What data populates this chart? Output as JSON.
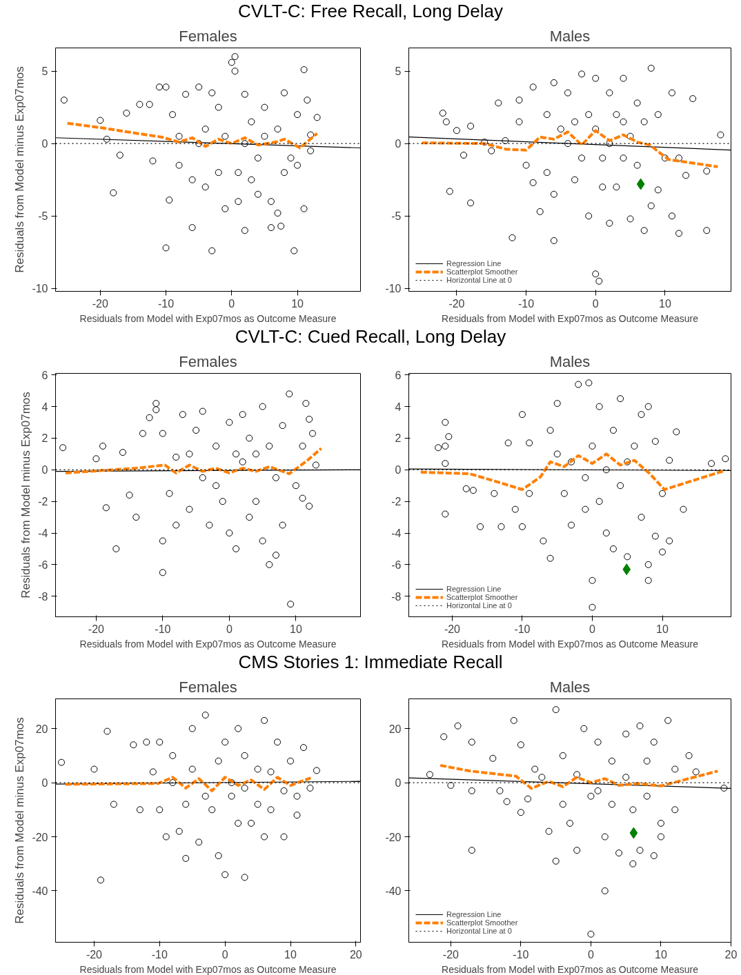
{
  "chart_data": [
    {
      "type": "scatter",
      "title": "CVLT-C: Free Recall, Long Delay",
      "subtitle": "Females",
      "xlabel": "Residuals from Model with Exp07mos as Outcome Measure",
      "ylabel": "Residuals from Model minus Exp07mos",
      "xlim": [
        -26.8,
        19.6
      ],
      "ylim": [
        -10.2,
        6.6
      ],
      "xticks": [
        -20,
        -10,
        0,
        10
      ],
      "yticks": [
        -10,
        -5,
        0,
        5
      ],
      "ref_lines": [
        {
          "axis": "y",
          "value": 0,
          "color": "#000000",
          "line_style": "dotted"
        }
      ],
      "series": [
        {
          "type": "scatter",
          "marker": "circle",
          "color": "#000000",
          "x": [
            -25.5,
            -20,
            -19,
            -18,
            -17,
            -16,
            -14,
            -12.5,
            -12,
            -11,
            -10,
            -10,
            -9.5,
            -8,
            -7,
            -6,
            -5,
            -4,
            -3,
            -3,
            -2,
            -1,
            0,
            0.5,
            0.5,
            1,
            1,
            2,
            2,
            3,
            4,
            4,
            5,
            6,
            6,
            7,
            7.5,
            8,
            9,
            9.5,
            10,
            11,
            11,
            11.5,
            12,
            13,
            -8,
            -6,
            -4,
            -2,
            -1,
            3,
            5,
            7,
            8,
            2,
            -5,
            10,
            12,
            -9
          ],
          "values": [
            3,
            1.6,
            0.3,
            -3.4,
            -0.8,
            2.1,
            2.7,
            2.7,
            -1.2,
            3.9,
            -7.2,
            3.9,
            -3.9,
            -1.5,
            3.4,
            -5.8,
            3.9,
            1,
            -7.4,
            3.5,
            -2,
            -4.5,
            5.6,
            6,
            5,
            -2,
            -4,
            -6,
            3.4,
            1.5,
            -1,
            -3.5,
            2.5,
            -4,
            -5.8,
            -4.8,
            -5.7,
            3.5,
            -1,
            -7.4,
            2,
            -4.5,
            5.1,
            3,
            -0.5,
            1.8,
            0.5,
            -2.5,
            -3,
            2.5,
            0.5,
            -2.5,
            0.5,
            1,
            -2,
            0,
            0,
            -1.5,
            0.6,
            2
          ]
        },
        {
          "type": "line",
          "color": "#000000",
          "line_style": "solid",
          "x": [
            -26.8,
            19.6
          ],
          "values": [
            0.4,
            -0.3
          ]
        },
        {
          "type": "line",
          "color": "#ff7f00",
          "line_style": "dashed",
          "x": [
            -25,
            -20,
            -14.4,
            -10.7,
            -8,
            -6,
            -4,
            -2,
            0,
            2,
            4,
            6.7,
            8,
            10.4,
            13
          ],
          "values": [
            1.4,
            1.1,
            0.7,
            0.45,
            0.1,
            0.4,
            -0.2,
            0.3,
            0,
            0.4,
            -0.1,
            0.1,
            0.3,
            -0.3,
            0.7
          ]
        }
      ]
    },
    {
      "type": "scatter",
      "subtitle": "Males",
      "xlabel": "Residuals from Model with Exp07mos as Outcome Measure",
      "xlim": [
        -26.9,
        19.5
      ],
      "ylim": [
        -10.2,
        6.6
      ],
      "xticks": [
        -20,
        -10,
        0,
        10
      ],
      "yticks": [
        -10,
        -5,
        0,
        5
      ],
      "legend": "bottom left",
      "ref_lines": [
        {
          "axis": "y",
          "value": 0,
          "label": "Horizontal Line at 0",
          "color": "#000000",
          "line_style": "dotted"
        }
      ],
      "series": [
        {
          "type": "scatter",
          "marker": "circle",
          "color": "#000000",
          "x": [
            -22,
            -21.5,
            -21,
            -20,
            -19,
            -18,
            -18,
            -16,
            -15,
            -14,
            -13,
            -12,
            -11,
            -11,
            -10,
            -9,
            -9,
            -8,
            -7,
            -6,
            -6,
            -6,
            -5,
            -4,
            -3,
            -2,
            -1,
            -1,
            0,
            0,
            0.5,
            1,
            2,
            2,
            3,
            4,
            4,
            5,
            6,
            6,
            7,
            7,
            8,
            8,
            9,
            9,
            10,
            11,
            11,
            12,
            12,
            13,
            14,
            16,
            16,
            18,
            -4,
            -2,
            0,
            2,
            4,
            -3,
            1,
            5,
            -7,
            3
          ],
          "values": [
            2.1,
            1.5,
            -3.3,
            0.9,
            -0.8,
            1.2,
            -4.1,
            0.1,
            -0.5,
            2.8,
            0.2,
            -6.5,
            3,
            1.5,
            -1.5,
            -2.7,
            3.9,
            -4.7,
            -2,
            4.2,
            -3.5,
            -6.7,
            1,
            3.5,
            -2.5,
            4.8,
            -5,
            2,
            -9,
            4.5,
            -9.5,
            -1,
            3.5,
            -5.5,
            -3,
            1.5,
            4.5,
            -5.2,
            -1.5,
            2.8,
            -6,
            1.5,
            5.2,
            -4.3,
            -3.2,
            2,
            -1,
            3.5,
            -5,
            -1,
            -6.2,
            -2.2,
            3.1,
            -1.9,
            -6,
            0.6,
            0,
            -1,
            1,
            0,
            -1,
            1.5,
            -3,
            0.5,
            2,
            2
          ]
        },
        {
          "type": "line",
          "name": "Regression Line",
          "color": "#000000",
          "line_style": "solid",
          "x": [
            -26.9,
            19.5
          ],
          "values": [
            0.45,
            -0.45
          ]
        },
        {
          "type": "line",
          "name": "Scatterplot Smoother",
          "color": "#ff7f00",
          "line_style": "dashed",
          "x": [
            -25,
            -16,
            -12.8,
            -10,
            -8,
            -6,
            -4,
            -2,
            0,
            2,
            4,
            6,
            7.8,
            10.5,
            17.6
          ],
          "values": [
            0.05,
            0,
            -0.4,
            -0.45,
            0.45,
            0.3,
            0.8,
            -0.1,
            0.9,
            0.2,
            0.6,
            0.1,
            -0.1,
            -1.1,
            -1.6
          ]
        },
        {
          "type": "scatter",
          "marker": "diamond",
          "color": "#008000",
          "x": [
            6.5
          ],
          "values": [
            -2.8
          ]
        }
      ]
    },
    {
      "type": "scatter",
      "title": "CVLT-C: Cued Recall, Long Delay",
      "subtitle": "Females",
      "xlabel": "Residuals from Model with Exp07mos as Outcome Measure",
      "ylabel": "Residuals from Model minus Exp07mos",
      "xlim": [
        -26.1,
        19.7
      ],
      "ylim": [
        -9.3,
        6.1
      ],
      "xticks": [
        -20,
        -10,
        0,
        10
      ],
      "yticks": [
        -8,
        -6,
        -4,
        -2,
        0,
        2,
        4,
        6
      ],
      "ref_lines": [
        {
          "axis": "y",
          "value": 0,
          "color": "#000000",
          "line_style": "dotted"
        }
      ],
      "series": [
        {
          "type": "scatter",
          "marker": "circle",
          "color": "#000000",
          "x": [
            -25,
            -20,
            -19,
            -18.5,
            -17,
            -16,
            -15,
            -14,
            -13,
            -12,
            -11,
            -11,
            -10,
            -10,
            -10,
            -9,
            -8,
            -7,
            -6,
            -5,
            -4,
            -3,
            -2,
            -1,
            0,
            0,
            1,
            1,
            2,
            3,
            4,
            5,
            5,
            6,
            6,
            7,
            8,
            8,
            9,
            9.2,
            10,
            11,
            11,
            11.5,
            12,
            12,
            12.5,
            13,
            -8,
            -4,
            -2,
            2,
            4,
            7,
            -6,
            3
          ],
          "values": [
            1.4,
            0.7,
            1.5,
            -2.4,
            -5,
            1.1,
            -1.6,
            -3,
            2.3,
            3.3,
            3.8,
            4.2,
            -6.5,
            -4.5,
            2.3,
            -1.5,
            -3.5,
            3.5,
            -2.5,
            2.5,
            3.7,
            -3.5,
            1.5,
            -2,
            3,
            -4,
            -5,
            1,
            3.5,
            -3,
            -2,
            4,
            -4.5,
            1.5,
            -6,
            -5.4,
            2.8,
            -3.5,
            4.8,
            -8.5,
            -1,
            1.5,
            -1.8,
            4.2,
            3.2,
            -2.3,
            2.3,
            0.3,
            0.8,
            -0.5,
            -1,
            0.5,
            1,
            -0.5,
            1,
            2
          ]
        },
        {
          "type": "line",
          "color": "#000000",
          "line_style": "solid",
          "x": [
            -26.1,
            19.7
          ],
          "values": [
            -0.1,
            0
          ]
        },
        {
          "type": "line",
          "color": "#ff7f00",
          "line_style": "dashed",
          "x": [
            -24.6,
            -14,
            -9.7,
            -8,
            -6,
            -4,
            -2,
            0,
            2,
            4,
            6,
            9,
            11.6,
            13.8
          ],
          "values": [
            -0.2,
            0.1,
            0.3,
            -0.2,
            0.3,
            -0.1,
            0.1,
            -0.2,
            0.1,
            -0.1,
            0.2,
            -0.25,
            0.55,
            1.35
          ]
        }
      ]
    },
    {
      "type": "scatter",
      "subtitle": "Males",
      "xlabel": "Residuals from Model with Exp07mos as Outcome Measure",
      "xlim": [
        -26.2,
        19.8
      ],
      "ylim": [
        -9.3,
        6.1
      ],
      "xticks": [
        -20,
        -10,
        0,
        10
      ],
      "yticks": [
        -8,
        -6,
        -4,
        -2,
        0,
        2,
        4,
        6
      ],
      "legend": "bottom left",
      "ref_lines": [
        {
          "axis": "y",
          "value": 0,
          "label": "Horizontal Line at 0",
          "color": "#000000",
          "line_style": "dotted"
        }
      ],
      "series": [
        {
          "type": "scatter",
          "marker": "circle",
          "color": "#000000",
          "x": [
            -21,
            -20.5,
            -21,
            -21,
            -21,
            -22,
            -18,
            -17,
            -16,
            -14,
            -13,
            -12,
            -10,
            -10,
            -9,
            -9,
            -7,
            -6,
            -6,
            -5,
            -4,
            -3,
            -2,
            -1,
            -0.5,
            0,
            0,
            1,
            1,
            2,
            3,
            3,
            4,
            5,
            6,
            7,
            7,
            8,
            8,
            8,
            9,
            9,
            10,
            11,
            12,
            13,
            17,
            19,
            -3,
            -1,
            2,
            4,
            -5,
            0,
            5,
            10,
            11,
            -11
          ],
          "values": [
            3,
            2.1,
            -2.8,
            0.4,
            1.5,
            1.4,
            -1.2,
            -1.3,
            -3.6,
            -1.5,
            -3.6,
            1.7,
            3.5,
            -3.6,
            -1.5,
            1.7,
            -4.5,
            -5.6,
            2.5,
            4.2,
            -1.5,
            -3.5,
            5.4,
            -2.5,
            5.5,
            -7,
            -8.7,
            4,
            -2,
            -4,
            -5,
            2.5,
            4.5,
            -5.5,
            1.5,
            -3,
            3.5,
            -7,
            -6,
            4,
            -4.2,
            1.8,
            -5.2,
            0.6,
            2.4,
            -2.5,
            0.4,
            0.7,
            0.5,
            -0.5,
            0,
            -1,
            1,
            1.5,
            0.5,
            -1.5,
            -4.5,
            -2.5
          ]
        },
        {
          "type": "line",
          "name": "Regression Line",
          "color": "#000000",
          "line_style": "solid",
          "x": [
            -26.2,
            19.8
          ],
          "values": [
            0.05,
            -0.05
          ]
        },
        {
          "type": "line",
          "name": "Scatterplot Smoother",
          "color": "#ff7f00",
          "line_style": "dashed",
          "x": [
            -24.5,
            -17.5,
            -13.3,
            -10,
            -7.4,
            -6,
            -4,
            -2,
            0,
            2,
            4,
            6,
            8.1,
            10.3,
            18.9
          ],
          "values": [
            -0.15,
            -0.25,
            -0.8,
            -1.25,
            -0.45,
            0.5,
            0.2,
            0.9,
            0.4,
            1,
            0.3,
            0.6,
            -0.2,
            -1.25,
            -0.05
          ]
        },
        {
          "type": "scatter",
          "marker": "diamond",
          "color": "#008000",
          "x": [
            4.9
          ],
          "values": [
            -6.3
          ]
        }
      ]
    },
    {
      "type": "scatter",
      "title": "CMS Stories 1: Immediate Recall",
      "subtitle": "Females",
      "xlabel": "Residuals from Model with Exp07mos as Outcome Measure",
      "ylabel": "Residuals from Model minus Exp07mos",
      "xlim": [
        -25.9,
        20.7
      ],
      "ylim": [
        -59,
        31
      ],
      "xticks": [
        -20,
        -10,
        0,
        10,
        20
      ],
      "yticks": [
        -40,
        -20,
        0,
        20
      ],
      "ref_lines": [
        {
          "axis": "y",
          "value": 0,
          "color": "#000000",
          "line_style": "dotted"
        }
      ],
      "series": [
        {
          "type": "scatter",
          "marker": "circle",
          "color": "#000000",
          "x": [
            -25,
            -20,
            -19,
            -18,
            -17,
            -14,
            -13,
            -12,
            -11,
            -10,
            -10,
            -9,
            -8,
            -7,
            -6,
            -5,
            -4,
            -3,
            -2,
            -1,
            0,
            0,
            1,
            2,
            3,
            3,
            4,
            5,
            6,
            6,
            7,
            8,
            9,
            10,
            11,
            11,
            12,
            13,
            14,
            -8,
            -5,
            -3,
            -1,
            1,
            3,
            5,
            7,
            9,
            -6,
            2
          ],
          "values": [
            7.5,
            5,
            -36,
            19,
            -8,
            14,
            -10,
            15,
            4,
            15,
            -10,
            -20,
            10,
            -18,
            -28,
            20,
            -22,
            25,
            -10,
            -27,
            -34,
            15,
            -5,
            20,
            -35,
            10,
            -15,
            5,
            -20,
            23,
            -10,
            15,
            -20,
            8,
            -12,
            -5,
            13,
            -2,
            4.5,
            0,
            5,
            -5,
            8,
            0,
            -2,
            -8,
            4,
            -3,
            -8,
            -15
          ]
        },
        {
          "type": "line",
          "color": "#000000",
          "line_style": "solid",
          "x": [
            -25.9,
            20.7
          ],
          "values": [
            -0.5,
            0.5
          ]
        },
        {
          "type": "line",
          "color": "#ff7f00",
          "line_style": "dashed",
          "x": [
            -24.4,
            -10.2,
            -8,
            -6,
            -4,
            -2,
            0,
            2,
            4,
            6,
            8,
            10,
            13.1
          ],
          "values": [
            -0.6,
            -0.3,
            2,
            -2,
            1.5,
            -3,
            2,
            -1,
            1,
            -2.5,
            2,
            -1,
            1.8
          ]
        }
      ]
    },
    {
      "type": "scatter",
      "subtitle": "Males",
      "xlabel": "Residuals from Model with Exp07mos as Outcome Measure",
      "xlim": [
        -26,
        20
      ],
      "ylim": [
        -59,
        31
      ],
      "xticks": [
        -20,
        -10,
        0,
        10,
        20
      ],
      "yticks": [
        -40,
        -20,
        0,
        20
      ],
      "legend": "bottom left",
      "ref_lines": [
        {
          "axis": "y",
          "value": 0,
          "label": "Horizontal Line at 0",
          "color": "#000000",
          "line_style": "dotted"
        }
      ],
      "series": [
        {
          "type": "scatter",
          "marker": "circle",
          "color": "#000000",
          "x": [
            -23,
            -21,
            -20,
            -19,
            -17,
            -17,
            -14,
            -13,
            -12,
            -17,
            -11,
            -10,
            -10,
            -9,
            -7,
            -6,
            -5,
            -5,
            -4,
            -3,
            -2,
            -1,
            0,
            1,
            2,
            2,
            3,
            4,
            5,
            6,
            6,
            7,
            7,
            8,
            9,
            9,
            10,
            11,
            12,
            12,
            14,
            15,
            19,
            0,
            -8,
            -2,
            1,
            3,
            5,
            -4,
            8,
            10
          ],
          "values": [
            3,
            17,
            -1,
            21,
            15,
            -3,
            9,
            -3,
            -7,
            -25,
            23,
            14,
            -11,
            -6,
            2,
            -18,
            -29,
            27,
            10,
            -15,
            -25,
            20,
            -5,
            15,
            -20,
            -40,
            8,
            -26,
            18,
            -10,
            -30,
            21,
            -25,
            -5,
            15,
            -27,
            -15,
            23,
            5,
            -10,
            10,
            4,
            -2,
            -56,
            5,
            3,
            -3,
            -8,
            2,
            -8,
            8,
            -20
          ]
        },
        {
          "type": "line",
          "name": "Regression Line",
          "color": "#000000",
          "line_style": "solid",
          "x": [
            -26,
            20
          ],
          "values": [
            1.8,
            -2.1
          ]
        },
        {
          "type": "line",
          "name": "Scatterplot Smoother",
          "color": "#ff7f00",
          "line_style": "dashed",
          "x": [
            -21.5,
            -17.2,
            -10.7,
            -8.5,
            -6,
            -4,
            -2,
            0,
            2,
            4,
            6.7,
            10,
            18.1
          ],
          "values": [
            6.4,
            4.3,
            2.4,
            -2.1,
            0.5,
            -1.5,
            2,
            0,
            1.5,
            -1,
            -0.3,
            -1.2,
            4.3
          ]
        },
        {
          "type": "scatter",
          "marker": "diamond",
          "color": "#008000",
          "x": [
            6.1
          ],
          "values": [
            -18.6
          ]
        }
      ]
    }
  ]
}
